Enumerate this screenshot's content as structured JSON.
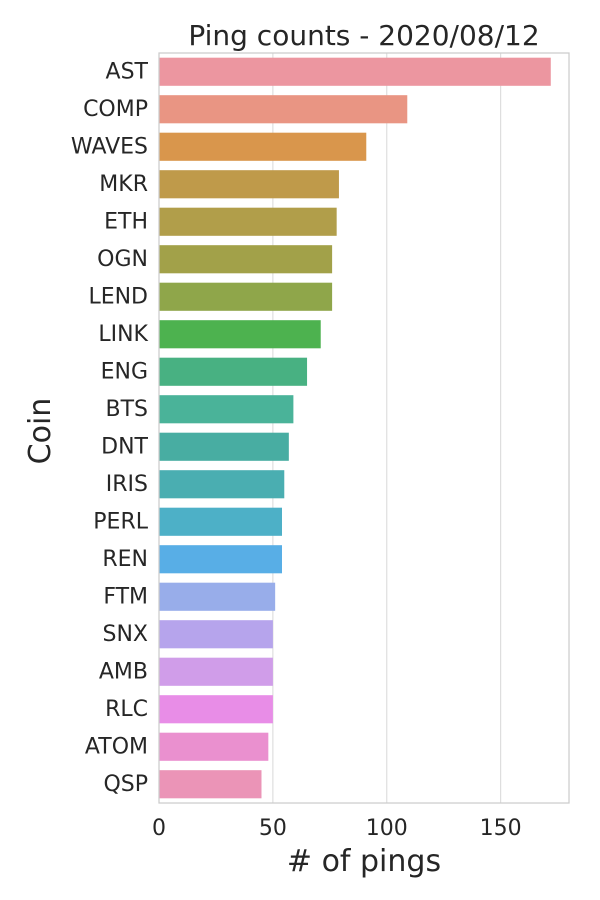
{
  "chart_data": {
    "type": "bar",
    "orientation": "horizontal",
    "title": "Ping counts - 2020/08/12",
    "xlabel": "# of pings",
    "ylabel": "Coin",
    "categories": [
      "AST",
      "COMP",
      "WAVES",
      "MKR",
      "ETH",
      "OGN",
      "LEND",
      "LINK",
      "ENG",
      "BTS",
      "DNT",
      "IRIS",
      "PERL",
      "REN",
      "FTM",
      "SNX",
      "AMB",
      "RLC",
      "ATOM",
      "QSP"
    ],
    "values": [
      172,
      109,
      91,
      79,
      78,
      76,
      76,
      71,
      65,
      59,
      57,
      55,
      54,
      54,
      51,
      50,
      50,
      50,
      48,
      45
    ],
    "colors": [
      "#ec96a0",
      "#e99583",
      "#d9964c",
      "#bf9a4a",
      "#b19e4a",
      "#a2a149",
      "#8fa64a",
      "#4db24f",
      "#48b182",
      "#4ab399",
      "#48ada2",
      "#4aaeb1",
      "#4db0c7",
      "#58aee6",
      "#98adea",
      "#b6a4ec",
      "#d09de9",
      "#e88de7",
      "#ea90cf",
      "#eb94b7"
    ],
    "xlim": [
      0,
      180
    ],
    "xticks": [
      0,
      50,
      100,
      150
    ],
    "grid": "vertical"
  }
}
